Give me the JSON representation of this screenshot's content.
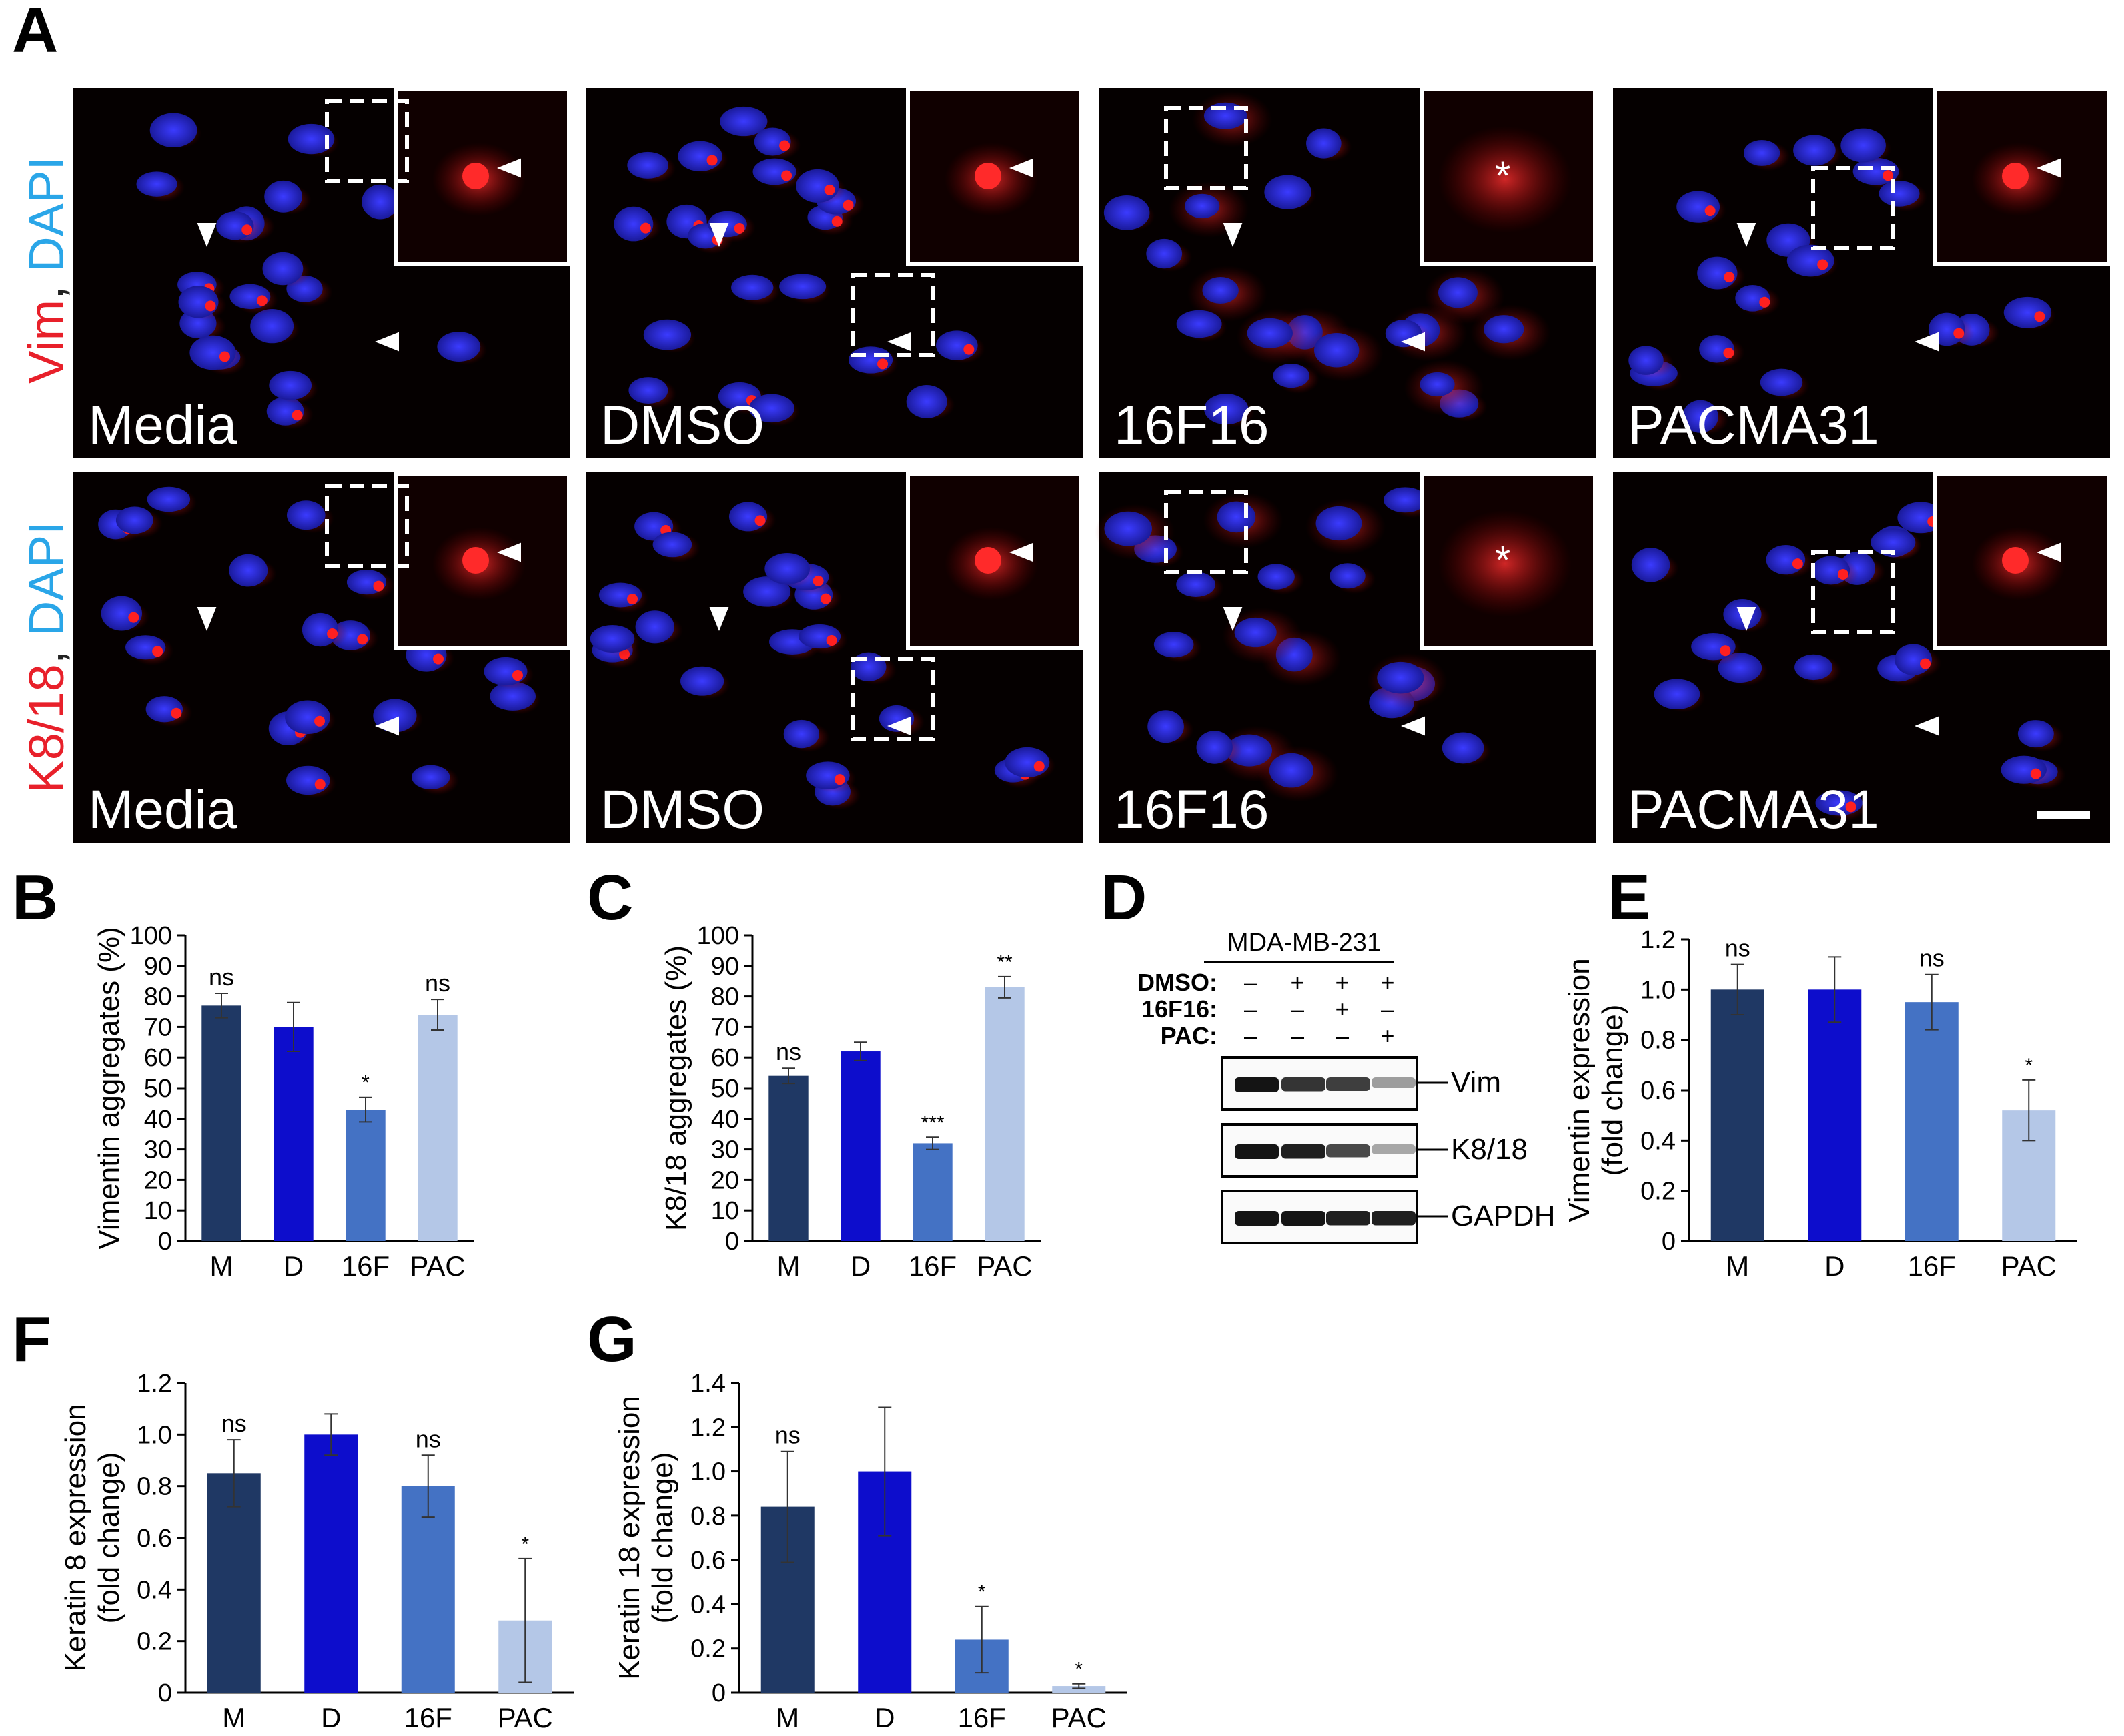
{
  "figure": {
    "panel_letters": [
      "A",
      "B",
      "C",
      "D",
      "E",
      "F",
      "G"
    ],
    "microscopy": {
      "row_labels": [
        {
          "stain": "Vim",
          "sep": ", ",
          "dapi": "DAPI"
        },
        {
          "stain": "K8/18",
          "sep": ", ",
          "dapi": "DAPI"
        }
      ],
      "conditions": [
        "Media",
        "DMSO",
        "16F16",
        "PACMA31"
      ],
      "colors": {
        "background": "#050000",
        "nucleus": "#2a2ad8",
        "signal": "#e01818",
        "stain_label": "#e8202a",
        "dapi_label": "#2aa6e8"
      }
    },
    "western": {
      "cell_line": "MDA-MB-231",
      "treatments": [
        {
          "label": "DMSO:",
          "marks": [
            "–",
            "+",
            "+",
            "+"
          ]
        },
        {
          "label": "16F16:",
          "marks": [
            "–",
            "–",
            "+",
            "–"
          ]
        },
        {
          "label": "PAC:",
          "marks": [
            "–",
            "–",
            "–",
            "+"
          ]
        }
      ],
      "blots": [
        {
          "label": "Vim",
          "intensity": [
            1.0,
            0.85,
            0.8,
            0.35
          ]
        },
        {
          "label": "K8/18",
          "intensity": [
            1.0,
            0.95,
            0.75,
            0.3
          ]
        },
        {
          "label": "GAPDH",
          "intensity": [
            1.0,
            1.0,
            0.95,
            0.95
          ]
        }
      ]
    }
  },
  "chart_data": [
    {
      "panel": "B",
      "type": "bar",
      "categories": [
        "M",
        "D",
        "16F",
        "PAC"
      ],
      "values": [
        77,
        70,
        43,
        74
      ],
      "errors": [
        4,
        8,
        4,
        5
      ],
      "annotations": [
        "ns",
        "",
        "*",
        "ns"
      ],
      "ylabel": "Vimentin aggregates (%)",
      "ylim": [
        0,
        100
      ],
      "yticks": [
        "0",
        "10",
        "20",
        "30",
        "40",
        "50",
        "60",
        "70",
        "80",
        "90",
        "100"
      ],
      "colors": [
        "#1f3864",
        "#0d0dcc",
        "#4472c4",
        "#b4c7e7"
      ]
    },
    {
      "panel": "C",
      "type": "bar",
      "categories": [
        "M",
        "D",
        "16F",
        "PAC"
      ],
      "values": [
        54,
        62,
        32,
        83
      ],
      "errors": [
        2.5,
        3,
        2,
        3.5
      ],
      "annotations": [
        "ns",
        "",
        "***",
        "**"
      ],
      "ylabel": "K8/18 aggregates (%)",
      "ylim": [
        0,
        100
      ],
      "yticks": [
        "0",
        "10",
        "20",
        "30",
        "40",
        "50",
        "60",
        "70",
        "80",
        "90",
        "100"
      ],
      "colors": [
        "#1f3864",
        "#0d0dcc",
        "#4472c4",
        "#b4c7e7"
      ]
    },
    {
      "panel": "E",
      "type": "bar",
      "categories": [
        "M",
        "D",
        "16F",
        "PAC"
      ],
      "values": [
        1.0,
        1.0,
        0.95,
        0.52
      ],
      "errors": [
        0.1,
        0.13,
        0.11,
        0.12
      ],
      "annotations": [
        "ns",
        "",
        "ns",
        "*"
      ],
      "ylabel_lines": [
        "Vimentin expression",
        "(fold change)"
      ],
      "ylim": [
        0,
        1.2
      ],
      "yticks": [
        "0",
        "0.2",
        "0.4",
        "0.6",
        "0.8",
        "1.0",
        "1.2"
      ],
      "colors": [
        "#1f3864",
        "#0d0dcc",
        "#4472c4",
        "#b4c7e7"
      ]
    },
    {
      "panel": "F",
      "type": "bar",
      "categories": [
        "M",
        "D",
        "16F",
        "PAC"
      ],
      "values": [
        0.85,
        1.0,
        0.8,
        0.28
      ],
      "errors": [
        0.13,
        0.08,
        0.12,
        0.24
      ],
      "annotations": [
        "ns",
        "",
        "ns",
        "*"
      ],
      "ylabel_lines": [
        "Keratin 8 expression",
        "(fold change)"
      ],
      "ylim": [
        0,
        1.2
      ],
      "yticks": [
        "0",
        "0.2",
        "0.4",
        "0.6",
        "0.8",
        "1.0",
        "1.2"
      ],
      "colors": [
        "#1f3864",
        "#0d0dcc",
        "#4472c4",
        "#b4c7e7"
      ]
    },
    {
      "panel": "G",
      "type": "bar",
      "categories": [
        "M",
        "D",
        "16F",
        "PAC"
      ],
      "values": [
        0.84,
        1.0,
        0.24,
        0.03
      ],
      "errors": [
        0.25,
        0.29,
        0.15,
        0.01
      ],
      "annotations": [
        "ns",
        "",
        "*",
        "*"
      ],
      "ylabel_lines": [
        "Keratin 18 expression",
        "(fold change)"
      ],
      "ylim": [
        0,
        1.4
      ],
      "yticks": [
        "0",
        "0.2",
        "0.4",
        "0.6",
        "0.8",
        "1.0",
        "1.2",
        "1.4"
      ],
      "colors": [
        "#1f3864",
        "#0d0dcc",
        "#4472c4",
        "#b4c7e7"
      ]
    }
  ]
}
